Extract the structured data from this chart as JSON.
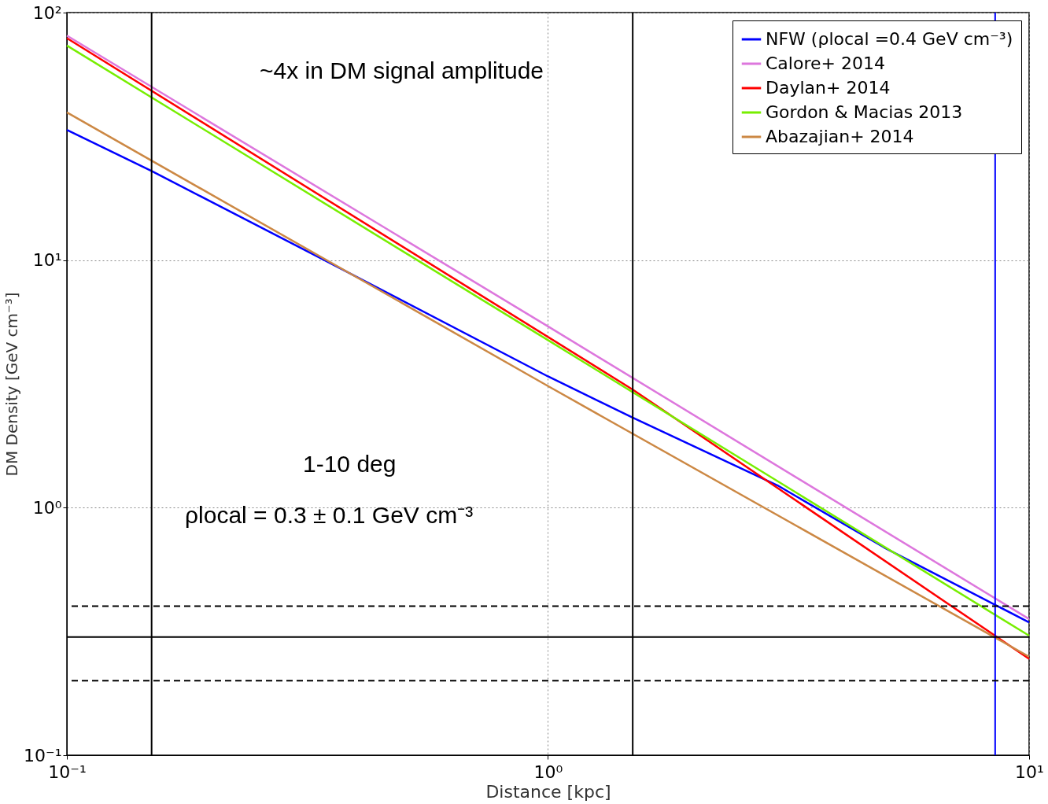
{
  "chart_data": {
    "type": "line",
    "xlabel": "Distance [kpc]",
    "ylabel": "DM Density [GeV cm⁻³]",
    "log": "xy",
    "grid": true,
    "legend": "top right",
    "line_style": "solid",
    "marker": "none",
    "xlim": [
      0.1,
      10
    ],
    "ylim": [
      0.1,
      100
    ],
    "xticks": [
      {
        "value": 0.1,
        "label": "10⁻¹"
      },
      {
        "value": 1,
        "label": "10⁰"
      },
      {
        "value": 10,
        "label": "10¹"
      }
    ],
    "yticks": [
      {
        "value": 0.1,
        "label": "10⁻¹"
      },
      {
        "value": 1,
        "label": "10⁰"
      },
      {
        "value": 10,
        "label": "10¹"
      },
      {
        "value": 100,
        "label": "10²"
      }
    ],
    "series": [
      {
        "name": "NFW (ρlocal =0.4 GeV cm⁻³)",
        "color": "#0000ff",
        "x": [
          0.1,
          0.15,
          0.33,
          1,
          1.5,
          3,
          5,
          10
        ],
        "values": [
          33.6,
          22.9,
          10.4,
          3.39,
          2.31,
          1.23,
          0.69,
          0.344
        ]
      },
      {
        "name": "Calore+ 2014",
        "color": "#dd77dd",
        "x": [
          0.1,
          1,
          10
        ],
        "values": [
          80.7,
          5.4,
          0.355
        ]
      },
      {
        "name": "Daylan+ 2014",
        "color": "#ff0000",
        "x": [
          0.1,
          1.5,
          10
        ],
        "values": [
          78.8,
          3.0,
          0.245
        ]
      },
      {
        "name": "Gordon & Macias 2013",
        "color": "#77ee00",
        "x": [
          0.1,
          1,
          10
        ],
        "values": [
          73.6,
          4.75,
          0.304
        ]
      },
      {
        "name": "Abazajian+ 2014",
        "color": "#cc8844",
        "x": [
          0.1,
          1,
          10
        ],
        "values": [
          39.5,
          3.1,
          0.25
        ]
      }
    ],
    "ref_lines": [
      {
        "axis": "x",
        "value": 0.15,
        "color": "#000000",
        "line_style": "solid"
      },
      {
        "axis": "x",
        "value": 1.5,
        "color": "#000000",
        "line_style": "solid"
      },
      {
        "axis": "x",
        "value": 8.5,
        "color": "#0000ff",
        "line_style": "solid"
      },
      {
        "axis": "y",
        "value": 0.3,
        "color": "#000000",
        "line_style": "solid"
      },
      {
        "axis": "y",
        "value": 0.4,
        "color": "#000000",
        "line_style": "dashed"
      },
      {
        "axis": "y",
        "value": 0.2,
        "color": "#000000",
        "line_style": "dashed"
      }
    ],
    "annotations": [
      "~4x in DM signal amplitude",
      "1-10 deg",
      "ρlocal = 0.3 ± 0.1 GeV cm⁻³"
    ]
  }
}
